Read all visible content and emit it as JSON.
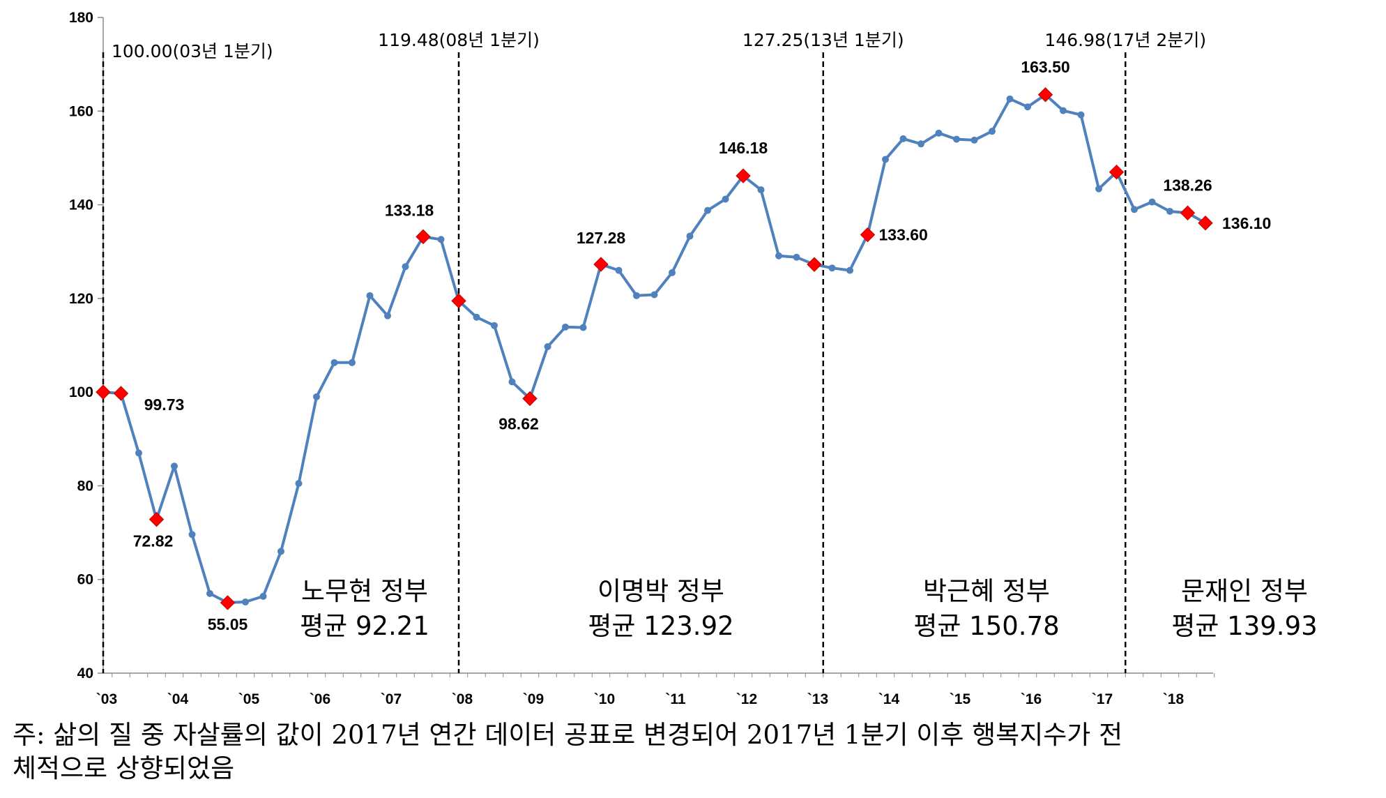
{
  "chart_data": {
    "type": "line",
    "title": "",
    "xlabel": "",
    "ylabel": "",
    "ylim": [
      40,
      180
    ],
    "yticks": [
      40,
      60,
      80,
      100,
      120,
      140,
      160,
      180
    ],
    "grid": false,
    "legend": "none",
    "x_tick_labels": [
      "`03",
      "`04",
      "`05",
      "`06",
      "`07",
      "`08",
      "`09",
      "`10",
      "`11",
      "`12",
      "`13",
      "`14",
      "`15",
      "`16",
      "`17",
      "`18"
    ],
    "series": [
      {
        "values": [
          100.0,
          99.73,
          87.0,
          72.82,
          84.2,
          69.6,
          57.0,
          55.05,
          55.2,
          56.4,
          66.0,
          80.5,
          99.0,
          106.3,
          106.3,
          120.6,
          116.3,
          126.8,
          133.18,
          132.6,
          119.48,
          116.0,
          114.2,
          102.2,
          98.62,
          109.7,
          113.9,
          113.8,
          127.28,
          126.0,
          120.6,
          120.8,
          125.5,
          133.3,
          138.8,
          141.2,
          146.18,
          143.2,
          129.1,
          128.8,
          127.25,
          126.5,
          126.0,
          133.6,
          149.7,
          154.1,
          153.0,
          155.3,
          154.0,
          153.8,
          155.7,
          162.6,
          160.9,
          163.5,
          160.1,
          159.2,
          143.4,
          146.98,
          139.0,
          140.6,
          138.6,
          138.26,
          136.1
        ]
      }
    ],
    "markers": [
      {
        "index": 0,
        "value": 100.0
      },
      {
        "index": 1,
        "value": 99.73,
        "label": "99.73"
      },
      {
        "index": 3,
        "value": 72.82,
        "label": "72.82"
      },
      {
        "index": 7,
        "value": 55.05,
        "label": "55.05"
      },
      {
        "index": 18,
        "value": 133.18,
        "label": "133.18"
      },
      {
        "index": 20,
        "value": 119.48
      },
      {
        "index": 24,
        "value": 98.62,
        "label": "98.62"
      },
      {
        "index": 28,
        "value": 127.28,
        "label": "127.28"
      },
      {
        "index": 36,
        "value": 146.18,
        "label": "146.18"
      },
      {
        "index": 40,
        "value": 127.25
      },
      {
        "index": 43,
        "value": 133.6,
        "label": "133.60"
      },
      {
        "index": 53,
        "value": 163.5,
        "label": "163.50"
      },
      {
        "index": 57,
        "value": 146.98
      },
      {
        "index": 61,
        "value": 138.26,
        "label": "138.26"
      },
      {
        "index": 62,
        "value": 136.1,
        "label": "136.10"
      }
    ],
    "period_dividers": [
      {
        "index": 0,
        "text": "100.00(03년 1분기)"
      },
      {
        "index": 20,
        "text": "119.48(08년 1분기)"
      },
      {
        "index": 40.5,
        "text": "127.25(13년 1분기)"
      },
      {
        "index": 57.5,
        "text": "146.98(17년 2분기)"
      }
    ],
    "periods": [
      {
        "name": "노무현 정부",
        "avg": "평균 92.21"
      },
      {
        "name": "이명박 정부",
        "avg": "평균 123.92"
      },
      {
        "name": "박근혜 정부",
        "avg": "평균 150.78"
      },
      {
        "name": "문재인 정부",
        "avg": "평균 139.93"
      }
    ],
    "colors": {
      "line": "#4F81BD",
      "marker": "#FF0000",
      "axis": "#888888",
      "divider": "#000000"
    }
  },
  "footnote": "주: 삶의 질 중 자살률의 값이 2017년 연간 데이터 공표로 변경되어 2017년 1분기 이후 행복지수가 전\n      체적으로 상향되었음"
}
